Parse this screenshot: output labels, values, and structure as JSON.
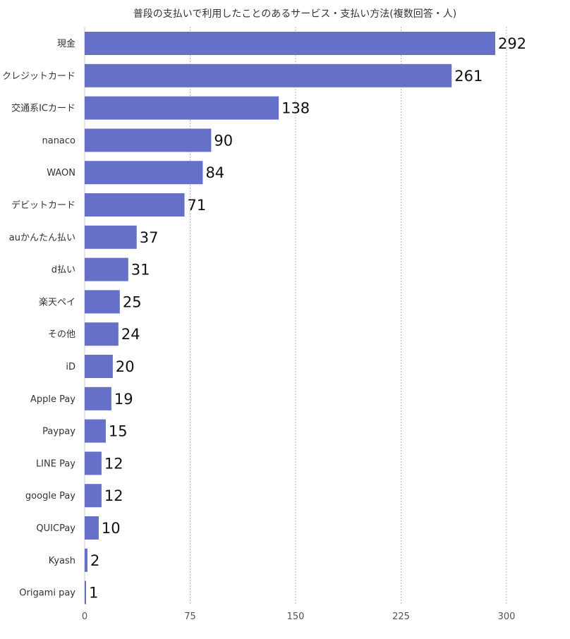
{
  "chart_data": {
    "type": "bar",
    "orientation": "horizontal",
    "title": "普段の支払いで利用したことのあるサービス・支払い方法(複数回答・人)",
    "categories": [
      "現金",
      "クレジットカード",
      "交通系ICカード",
      "nanaco",
      "WAON",
      "デビットカード",
      "auかんたん払い",
      "d払い",
      "楽天ペイ",
      "その他",
      "iD",
      "Apple Pay",
      "Paypay",
      "LINE Pay",
      "google Pay",
      "QUICPay",
      "Kyash",
      "Origami pay"
    ],
    "values": [
      292,
      261,
      138,
      90,
      84,
      71,
      37,
      31,
      25,
      24,
      20,
      19,
      15,
      12,
      12,
      10,
      2,
      1
    ],
    "xlim": [
      0,
      300
    ],
    "xticks": [
      0,
      75,
      150,
      225,
      300
    ],
    "grid": true,
    "bar_color": "#6670c8",
    "gridline_color": "#b8b8b8"
  }
}
